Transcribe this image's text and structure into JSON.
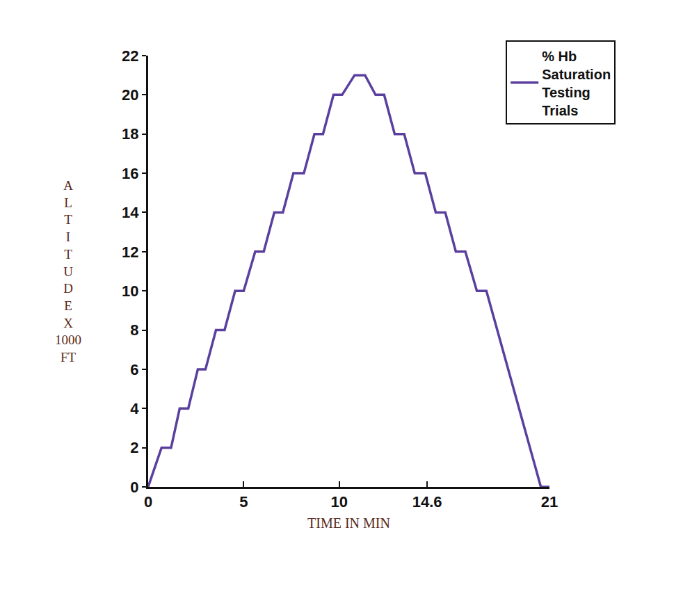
{
  "chart_data": {
    "type": "line",
    "x_label": "TIME IN MIN",
    "y_label": "ALTITUDE X 1000 FT",
    "x": [
      0,
      0.7,
      1.2,
      1.65,
      2.1,
      2.6,
      3.0,
      3.55,
      4.0,
      4.55,
      5.0,
      5.6,
      6.05,
      6.6,
      7.05,
      7.6,
      8.15,
      8.7,
      9.15,
      9.7,
      10.15,
      10.8,
      11.35,
      11.9,
      12.35,
      12.9,
      13.4,
      13.95,
      14.5,
      15.05,
      15.55,
      16.1,
      16.6,
      17.2,
      17.7,
      20.55,
      21
    ],
    "series": [
      {
        "name": "% Hb Saturation Testing Trials",
        "color": "#5b3f9e",
        "values": [
          0,
          2,
          2,
          4,
          4,
          6,
          6,
          8,
          8,
          10,
          10,
          12,
          12,
          14,
          14,
          16,
          16,
          18,
          18,
          20,
          20,
          21,
          21,
          20,
          20,
          18,
          18,
          16,
          16,
          14,
          14,
          12,
          12,
          10,
          10,
          0,
          0
        ]
      }
    ],
    "xlim": [
      0,
      21
    ],
    "xticks": [
      0,
      5,
      10,
      14.6,
      21
    ],
    "ylim": [
      0,
      22
    ],
    "yticks": [
      0,
      2,
      4,
      6,
      8,
      10,
      12,
      14,
      16,
      18,
      20,
      22
    ],
    "grid": false,
    "legend": "top right"
  }
}
